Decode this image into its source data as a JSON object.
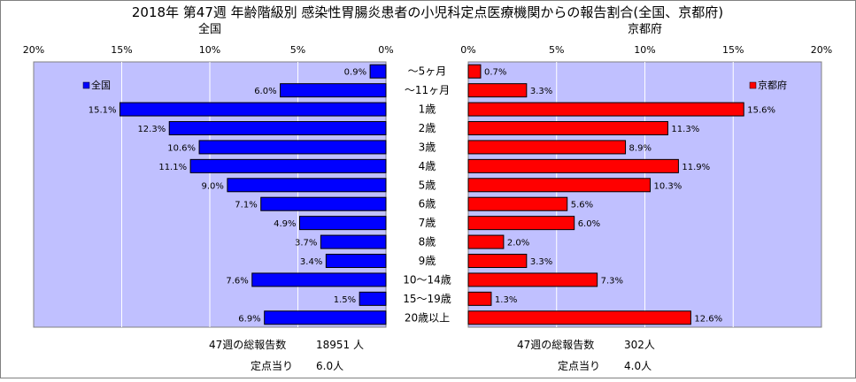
{
  "title": "2018年 第47週 年齢階級別 感染性胃腸炎患者の小児科定点医療機関からの報告割合(全国、京都府)",
  "chart_data": [
    {
      "type": "bar",
      "orientation": "horizontal",
      "direction": "right-to-left",
      "title": "全国",
      "categories": [
        "～5ヶ月",
        "～11ヶ月",
        "1歳",
        "2歳",
        "3歳",
        "4歳",
        "5歳",
        "6歳",
        "7歳",
        "8歳",
        "9歳",
        "10～14歳",
        "15～19歳",
        "20歳以上"
      ],
      "series": [
        {
          "name": "全国",
          "color": "#0000ff",
          "values": [
            0.9,
            6.0,
            15.1,
            12.3,
            10.6,
            11.1,
            9.0,
            7.1,
            4.9,
            3.7,
            3.4,
            7.6,
            1.5,
            6.9
          ],
          "labels": [
            "0.9%",
            "6.0%",
            "15.1%",
            "12.3%",
            "10.6%",
            "11.1%",
            "9.0%",
            "7.1%",
            "4.9%",
            "3.7%",
            "3.4%",
            "7.6%",
            "1.5%",
            "6.9%"
          ]
        }
      ],
      "xlim": [
        0,
        20
      ],
      "xticks": [
        "20%",
        "15%",
        "10%",
        "5%",
        "0%"
      ],
      "legend": "top-left",
      "grid": true,
      "background": "#c0c0ff"
    },
    {
      "type": "bar",
      "orientation": "horizontal",
      "direction": "left-to-right",
      "title": "京都府",
      "categories": [
        "～5ヶ月",
        "～11ヶ月",
        "1歳",
        "2歳",
        "3歳",
        "4歳",
        "5歳",
        "6歳",
        "7歳",
        "8歳",
        "9歳",
        "10～14歳",
        "15～19歳",
        "20歳以上"
      ],
      "series": [
        {
          "name": "京都府",
          "color": "#ff0000",
          "values": [
            0.7,
            3.3,
            15.6,
            11.3,
            8.9,
            11.9,
            10.3,
            5.6,
            6.0,
            2.0,
            3.3,
            7.3,
            1.3,
            12.6
          ],
          "labels": [
            "0.7%",
            "3.3%",
            "15.6%",
            "11.3%",
            "8.9%",
            "11.9%",
            "10.3%",
            "5.6%",
            "6.0%",
            "2.0%",
            "3.3%",
            "7.3%",
            "1.3%",
            "12.6%"
          ]
        }
      ],
      "xlim": [
        0,
        20
      ],
      "xticks": [
        "0%",
        "5%",
        "10%",
        "15%",
        "20%"
      ],
      "legend": "top-right",
      "grid": true,
      "background": "#c0c0ff"
    }
  ],
  "footer": {
    "national": {
      "total_label": "47週の総報告数",
      "total_value": "18951 人",
      "per_label": "定点当り",
      "per_value": "6.0人"
    },
    "kyoto": {
      "total_label": "47週の総報告数",
      "total_value": "302人",
      "per_label": "定点当り",
      "per_value": "4.0人"
    }
  }
}
